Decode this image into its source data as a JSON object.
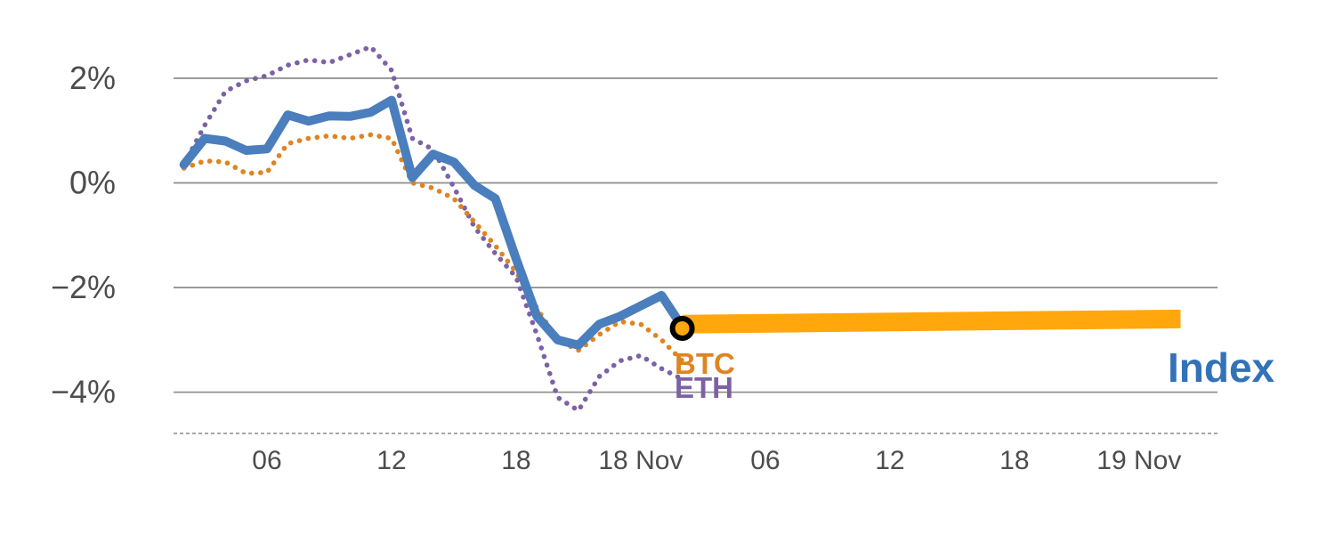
{
  "chart_data": {
    "type": "line",
    "title": "",
    "unit": "%",
    "grid": "horizontal-only",
    "colors": {
      "index_line": "#4a7ebd",
      "btc_line": "#df8420",
      "eth_line": "#7c62a5",
      "projection_band": "#ffa70d",
      "marker_ring": "#000000",
      "gridline": "#8c8c8c",
      "tick_text": "#4d4d4d"
    },
    "y_axis": {
      "range": [
        -4.8,
        2.9
      ],
      "ticks": [
        {
          "v": 2,
          "label": "2%"
        },
        {
          "v": 0,
          "label": "0%"
        },
        {
          "v": -2,
          "label": "−2%"
        },
        {
          "v": -4,
          "label": "−4%"
        }
      ]
    },
    "x_axis": {
      "range_hours": [
        0,
        52
      ],
      "ticks": [
        {
          "t": 6,
          "label": "06"
        },
        {
          "t": 12,
          "label": "12"
        },
        {
          "t": 18,
          "label": "18"
        },
        {
          "t": 24,
          "label": "18 Nov"
        },
        {
          "t": 30,
          "label": "06"
        },
        {
          "t": 36,
          "label": "12"
        },
        {
          "t": 42,
          "label": "18"
        },
        {
          "t": 48,
          "label": "19 Nov"
        }
      ]
    },
    "series": [
      {
        "name": "ETH",
        "style": "dotted",
        "color": "#7c62a5",
        "start_hour": 2,
        "values": [
          0.35,
          1.1,
          1.75,
          1.95,
          2.05,
          2.25,
          2.35,
          2.3,
          2.45,
          2.6,
          2.15,
          0.85,
          0.64,
          -0.08,
          -0.85,
          -1.35,
          -1.8,
          -2.9,
          -4.1,
          -4.35,
          -3.7,
          -3.4,
          -3.3,
          -3.55,
          -3.75
        ]
      },
      {
        "name": "BTC",
        "style": "dotted",
        "color": "#df8420",
        "start_hour": 2,
        "values": [
          0.28,
          0.42,
          0.4,
          0.18,
          0.2,
          0.75,
          0.85,
          0.9,
          0.85,
          0.92,
          0.85,
          0.0,
          -0.1,
          -0.3,
          -0.75,
          -1.2,
          -1.7,
          -2.4,
          -3.0,
          -3.2,
          -2.9,
          -2.65,
          -2.7,
          -3.0,
          -3.4
        ]
      },
      {
        "name": "Index",
        "style": "solid",
        "color": "#4a7ebd",
        "start_hour": 2,
        "values": [
          0.35,
          0.85,
          0.8,
          0.62,
          0.65,
          1.3,
          1.18,
          1.28,
          1.27,
          1.35,
          1.58,
          0.1,
          0.55,
          0.4,
          -0.05,
          -0.3,
          -1.45,
          -2.55,
          -3.0,
          -3.1,
          -2.7,
          -2.55,
          -2.35,
          -2.15,
          -2.75
        ]
      }
    ],
    "projection": {
      "name": "Index projection",
      "color": "#ffa70d",
      "start_hour": 26,
      "end_hour": 50,
      "start_value": -2.7,
      "end_value": -2.6
    },
    "marker": {
      "hour": 26,
      "value": -2.78,
      "fill": "#ffa70d",
      "ring": "#000000"
    },
    "series_labels": {
      "btc": {
        "text": "BTC",
        "color": "#df8420"
      },
      "eth": {
        "text": "ETH",
        "color": "#7c62a5"
      },
      "index": {
        "text": "Index",
        "color": "#3272b9"
      }
    }
  }
}
